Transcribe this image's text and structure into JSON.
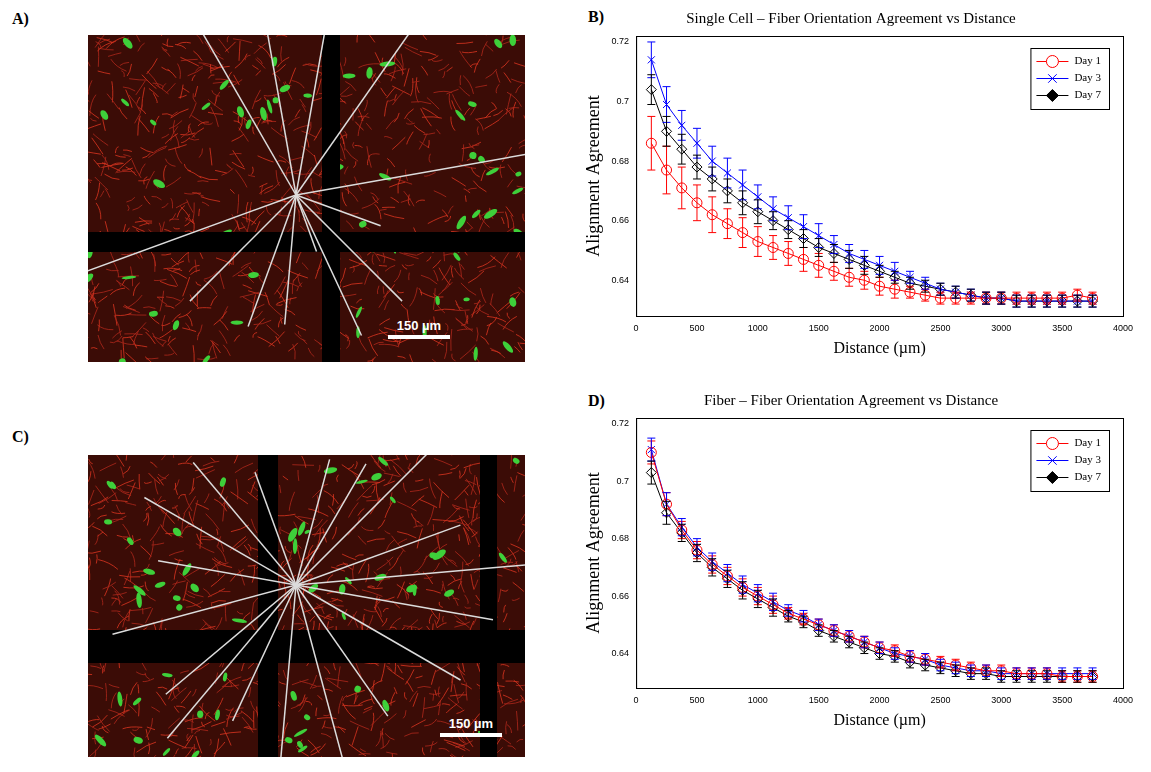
{
  "images": [
    {
      "label": "A)",
      "scale_bar": "150 µm"
    },
    {
      "label": "C)",
      "scale_bar": "150 µm"
    }
  ],
  "chart_data": [
    {
      "label": "B)",
      "type": "line",
      "title": "Single Cell – Fiber Orientation Agreement vs Distance",
      "x_label": "Distance (µm)",
      "y_label": "Alignment Agreement",
      "x": [
        125,
        250,
        375,
        500,
        625,
        750,
        875,
        1000,
        1125,
        1250,
        1375,
        1500,
        1625,
        1750,
        1875,
        2000,
        2125,
        2250,
        2375,
        2500,
        2625,
        2750,
        2875,
        3000,
        3125,
        3250,
        3375,
        3500,
        3625,
        3750
      ],
      "xlim": [
        0,
        4000
      ],
      "xticks": [
        0,
        500,
        1000,
        1500,
        2000,
        2500,
        3000,
        3500,
        4000
      ],
      "ylim": [
        0.628,
        0.722
      ],
      "yticks": [
        0.64,
        0.66,
        0.68,
        0.7,
        0.72
      ],
      "grid": false,
      "legend": "upper right",
      "series": [
        {
          "name": "Day 1",
          "color": "#ff0000",
          "marker": "circle",
          "line_style": "solid",
          "values": [
            0.686,
            0.677,
            0.671,
            0.666,
            0.662,
            0.659,
            0.656,
            0.653,
            0.651,
            0.649,
            0.647,
            0.645,
            0.643,
            0.641,
            0.64,
            0.638,
            0.637,
            0.636,
            0.635,
            0.634,
            0.634,
            0.634,
            0.634,
            0.634,
            0.634,
            0.634,
            0.634,
            0.634,
            0.635,
            0.634
          ],
          "errors": [
            0.009,
            0.008,
            0.007,
            0.006,
            0.006,
            0.005,
            0.005,
            0.005,
            0.004,
            0.004,
            0.004,
            0.004,
            0.003,
            0.003,
            0.003,
            0.003,
            0.003,
            0.002,
            0.002,
            0.002,
            0.002,
            0.002,
            0.002,
            0.002,
            0.002,
            0.002,
            0.002,
            0.002,
            0.002,
            0.002
          ]
        },
        {
          "name": "Day 3",
          "color": "#0000ff",
          "marker": "x",
          "line_style": "solid",
          "values": [
            0.714,
            0.699,
            0.692,
            0.686,
            0.68,
            0.676,
            0.672,
            0.668,
            0.664,
            0.661,
            0.658,
            0.655,
            0.652,
            0.649,
            0.647,
            0.645,
            0.643,
            0.641,
            0.639,
            0.637,
            0.636,
            0.635,
            0.634,
            0.634,
            0.633,
            0.633,
            0.633,
            0.633,
            0.633,
            0.633
          ],
          "errors": [
            0.006,
            0.006,
            0.005,
            0.005,
            0.005,
            0.005,
            0.005,
            0.004,
            0.004,
            0.004,
            0.004,
            0.004,
            0.003,
            0.003,
            0.003,
            0.003,
            0.003,
            0.002,
            0.002,
            0.002,
            0.002,
            0.002,
            0.002,
            0.002,
            0.002,
            0.002,
            0.002,
            0.002,
            0.002,
            0.002
          ]
        },
        {
          "name": "Day 7",
          "color": "#000000",
          "marker": "diamond",
          "line_style": "solid",
          "values": [
            0.704,
            0.69,
            0.684,
            0.678,
            0.674,
            0.67,
            0.666,
            0.663,
            0.66,
            0.657,
            0.654,
            0.651,
            0.649,
            0.647,
            0.645,
            0.643,
            0.641,
            0.639,
            0.638,
            0.637,
            0.636,
            0.635,
            0.634,
            0.634,
            0.633,
            0.633,
            0.633,
            0.633,
            0.633,
            0.633
          ],
          "errors": [
            0.005,
            0.005,
            0.005,
            0.004,
            0.004,
            0.004,
            0.004,
            0.004,
            0.003,
            0.003,
            0.003,
            0.003,
            0.003,
            0.003,
            0.003,
            0.002,
            0.002,
            0.002,
            0.002,
            0.002,
            0.002,
            0.002,
            0.002,
            0.002,
            0.002,
            0.002,
            0.002,
            0.002,
            0.002,
            0.002
          ]
        }
      ]
    },
    {
      "label": "D)",
      "type": "line",
      "title": "Fiber – Fiber Orientation Agreement vs Distance",
      "x_label": "Distance (µm)",
      "y_label": "Alignment Agreement",
      "x": [
        125,
        250,
        375,
        500,
        625,
        750,
        875,
        1000,
        1125,
        1250,
        1375,
        1500,
        1625,
        1750,
        1875,
        2000,
        2125,
        2250,
        2375,
        2500,
        2625,
        2750,
        2875,
        3000,
        3125,
        3250,
        3375,
        3500,
        3625,
        3750
      ],
      "xlim": [
        0,
        4000
      ],
      "xticks": [
        0,
        500,
        1000,
        1500,
        2000,
        2500,
        3000,
        3500,
        4000
      ],
      "ylim": [
        0.628,
        0.722
      ],
      "yticks": [
        0.64,
        0.66,
        0.68,
        0.7,
        0.72
      ],
      "grid": false,
      "legend": "upper right",
      "series": [
        {
          "name": "Day 1",
          "color": "#ff0000",
          "marker": "circle",
          "line_style": "solid",
          "values": [
            0.71,
            0.692,
            0.683,
            0.676,
            0.671,
            0.667,
            0.663,
            0.66,
            0.657,
            0.654,
            0.652,
            0.65,
            0.648,
            0.646,
            0.644,
            0.642,
            0.641,
            0.639,
            0.638,
            0.637,
            0.636,
            0.635,
            0.634,
            0.634,
            0.633,
            0.633,
            0.633,
            0.632,
            0.632,
            0.632
          ],
          "errors": [
            0.004,
            0.004,
            0.003,
            0.003,
            0.003,
            0.003,
            0.003,
            0.003,
            0.003,
            0.002,
            0.002,
            0.002,
            0.002,
            0.002,
            0.002,
            0.002,
            0.002,
            0.002,
            0.002,
            0.002,
            0.002,
            0.002,
            0.002,
            0.002,
            0.002,
            0.002,
            0.002,
            0.002,
            0.002,
            0.002
          ]
        },
        {
          "name": "Day 3",
          "color": "#0000ff",
          "marker": "x",
          "line_style": "solid",
          "values": [
            0.711,
            0.692,
            0.684,
            0.677,
            0.672,
            0.668,
            0.664,
            0.661,
            0.658,
            0.655,
            0.653,
            0.65,
            0.648,
            0.646,
            0.644,
            0.642,
            0.64,
            0.639,
            0.638,
            0.636,
            0.635,
            0.634,
            0.634,
            0.633,
            0.633,
            0.633,
            0.633,
            0.633,
            0.633,
            0.633
          ],
          "errors": [
            0.004,
            0.004,
            0.003,
            0.003,
            0.003,
            0.003,
            0.003,
            0.003,
            0.003,
            0.002,
            0.002,
            0.002,
            0.002,
            0.002,
            0.002,
            0.002,
            0.002,
            0.002,
            0.002,
            0.002,
            0.002,
            0.002,
            0.002,
            0.002,
            0.002,
            0.002,
            0.002,
            0.002,
            0.002,
            0.002
          ]
        },
        {
          "name": "Day 7",
          "color": "#000000",
          "marker": "diamond",
          "line_style": "solid",
          "values": [
            0.703,
            0.689,
            0.682,
            0.675,
            0.67,
            0.666,
            0.662,
            0.659,
            0.656,
            0.653,
            0.651,
            0.648,
            0.646,
            0.644,
            0.642,
            0.64,
            0.639,
            0.637,
            0.636,
            0.635,
            0.634,
            0.633,
            0.633,
            0.632,
            0.632,
            0.632,
            0.632,
            0.632,
            0.632,
            0.632
          ],
          "errors": [
            0.004,
            0.004,
            0.003,
            0.003,
            0.003,
            0.003,
            0.003,
            0.003,
            0.003,
            0.002,
            0.002,
            0.002,
            0.002,
            0.002,
            0.002,
            0.002,
            0.002,
            0.002,
            0.002,
            0.002,
            0.002,
            0.002,
            0.002,
            0.002,
            0.002,
            0.002,
            0.002,
            0.002,
            0.002,
            0.002
          ]
        }
      ]
    }
  ]
}
